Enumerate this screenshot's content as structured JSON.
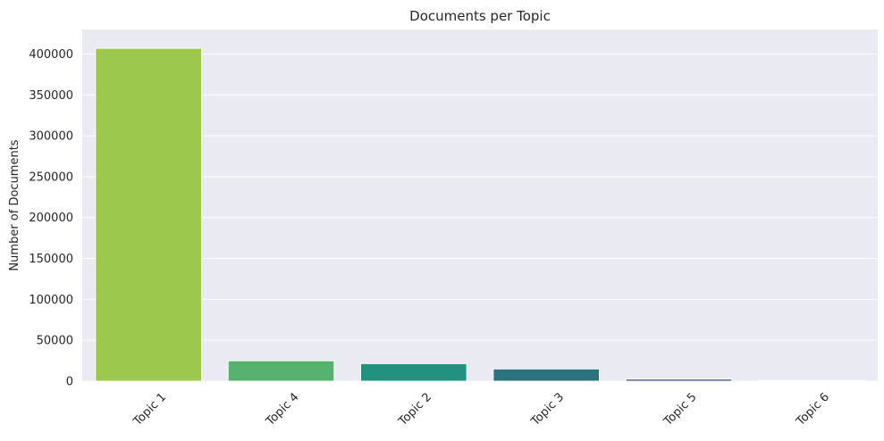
{
  "chart_data": {
    "type": "bar",
    "title": "Documents per Topic",
    "xlabel": "",
    "ylabel": "Number of Documents",
    "categories": [
      "Topic 1",
      "Topic 4",
      "Topic 2",
      "Topic 3",
      "Topic 5",
      "Topic 6"
    ],
    "values": [
      407000,
      25000,
      21500,
      15000,
      2500,
      1000
    ],
    "colors": [
      "#9bc84d",
      "#57b26f",
      "#23917f",
      "#2d737e",
      "#3b4f7d",
      "#3d3a6e"
    ],
    "ylim": [
      0,
      430000
    ],
    "yticks": [
      0,
      50000,
      100000,
      150000,
      200000,
      250000,
      300000,
      350000,
      400000
    ],
    "ytick_labels": [
      "0",
      "50000",
      "100000",
      "150000",
      "200000",
      "250000",
      "300000",
      "350000",
      "400000"
    ],
    "grid": true,
    "plot_background": "#eaeaf2",
    "grid_color": "#ffffff"
  }
}
